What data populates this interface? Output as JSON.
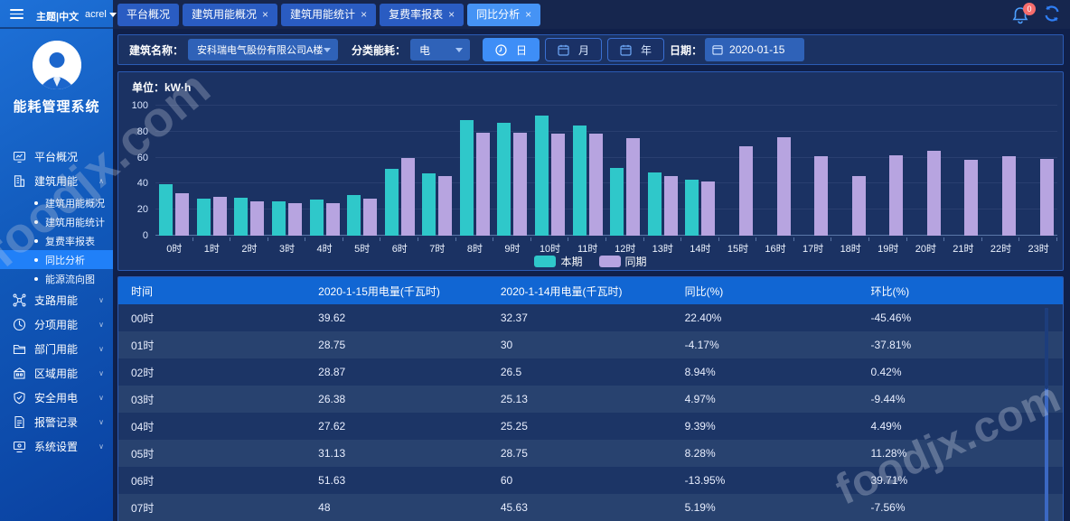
{
  "header": {
    "theme_label": "主题|中文",
    "user": "acrel",
    "tabs": [
      {
        "label": "平台概况",
        "closable": false,
        "active": false
      },
      {
        "label": "建筑用能概况",
        "closable": true,
        "active": false
      },
      {
        "label": "建筑用能统计",
        "closable": true,
        "active": false
      },
      {
        "label": "复费率报表",
        "closable": true,
        "active": false
      },
      {
        "label": "同比分析",
        "closable": true,
        "active": true
      }
    ],
    "notification_count": "0"
  },
  "sidebar": {
    "app_title": "能耗管理系统",
    "items": [
      {
        "label": "平台概况",
        "icon": "monitor",
        "children": null
      },
      {
        "label": "建筑用能",
        "icon": "building",
        "expanded": true,
        "children": [
          {
            "label": "建筑用能概况",
            "active": false
          },
          {
            "label": "建筑用能统计",
            "active": false
          },
          {
            "label": "复费率报表",
            "active": false
          },
          {
            "label": "同比分析",
            "active": true
          },
          {
            "label": "能源流向图",
            "active": false
          }
        ]
      },
      {
        "label": "支路用能",
        "icon": "branch",
        "children": []
      },
      {
        "label": "分项用能",
        "icon": "subentry",
        "children": []
      },
      {
        "label": "部门用能",
        "icon": "department",
        "children": []
      },
      {
        "label": "区域用能",
        "icon": "region",
        "children": []
      },
      {
        "label": "安全用电",
        "icon": "safety",
        "children": []
      },
      {
        "label": "报警记录",
        "icon": "alarm",
        "children": []
      },
      {
        "label": "系统设置",
        "icon": "settings",
        "children": []
      }
    ]
  },
  "filters": {
    "building_label": "建筑名称：",
    "building_value": "安科瑞电气股份有限公司A楼",
    "category_label": "分类能耗：",
    "category_value": "电",
    "day_button": "日",
    "month_button": "月",
    "year_button": "年",
    "date_label": "日期：",
    "date_value": "2020-01-15"
  },
  "chart_data": {
    "type": "bar",
    "unit_label": "单位：kW·h",
    "categories": [
      "0时",
      "1时",
      "2时",
      "3时",
      "4时",
      "5时",
      "6时",
      "7时",
      "8时",
      "9时",
      "10时",
      "11时",
      "12时",
      "13时",
      "14时",
      "15时",
      "16时",
      "17时",
      "18时",
      "19时",
      "20时",
      "21时",
      "22时",
      "23时"
    ],
    "series": [
      {
        "name": "本期",
        "color": "#2fc8ca",
        "values": [
          39.62,
          28.75,
          28.87,
          26.38,
          27.62,
          31.13,
          51.63,
          48,
          89,
          86.5,
          92.5,
          84.5,
          52,
          48.5,
          43,
          null,
          null,
          null,
          null,
          null,
          null,
          null,
          null,
          null
        ]
      },
      {
        "name": "同期",
        "color": "#b7a4e0",
        "values": [
          32.37,
          30,
          26.5,
          25.13,
          25.25,
          28.75,
          60,
          45.63,
          79.5,
          79.5,
          78.5,
          78.5,
          75,
          45.5,
          42,
          69,
          76,
          61,
          46,
          62,
          65,
          58,
          61,
          59
        ]
      }
    ],
    "ylim": [
      0,
      100
    ],
    "yticks": [
      0,
      20,
      40,
      60,
      80,
      100
    ],
    "legend_position": "bottom"
  },
  "table": {
    "columns": [
      "时间",
      "2020-1-15用电量(千瓦时)",
      "2020-1-14用电量(千瓦时)",
      "同比(%)",
      "环比(%)"
    ],
    "rows": [
      [
        "00时",
        "39.62",
        "32.37",
        "22.40%",
        "-45.46%"
      ],
      [
        "01时",
        "28.75",
        "30",
        "-4.17%",
        "-37.81%"
      ],
      [
        "02时",
        "28.87",
        "26.5",
        "8.94%",
        "0.42%"
      ],
      [
        "03时",
        "26.38",
        "25.13",
        "4.97%",
        "-9.44%"
      ],
      [
        "04时",
        "27.62",
        "25.25",
        "9.39%",
        "4.49%"
      ],
      [
        "05时",
        "31.13",
        "28.75",
        "8.28%",
        "11.28%"
      ],
      [
        "06时",
        "51.63",
        "60",
        "-13.95%",
        "39.71%"
      ],
      [
        "07时",
        "48",
        "45.63",
        "5.19%",
        "-7.56%"
      ]
    ]
  },
  "watermark": "foodjx.com"
}
